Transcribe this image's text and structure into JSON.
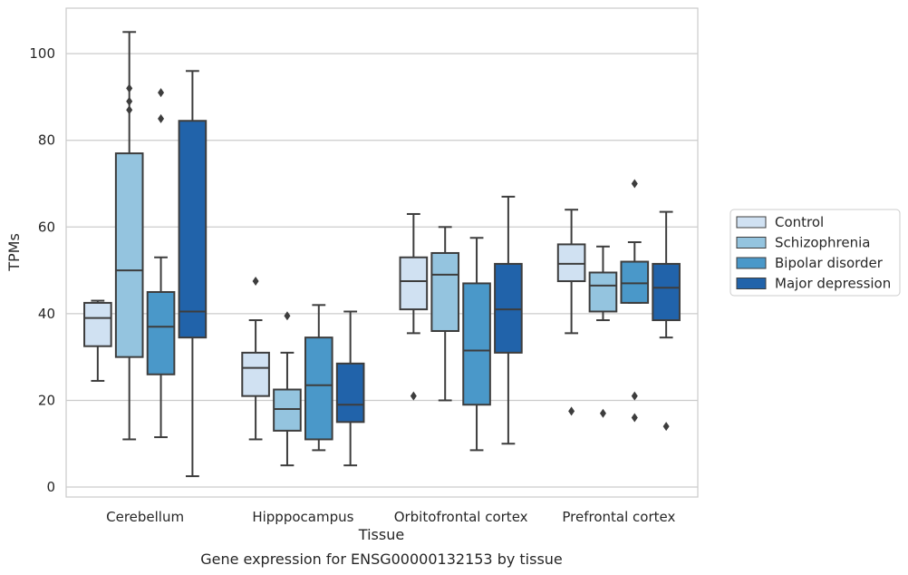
{
  "chart_data": {
    "type": "boxplot",
    "caption": "Gene expression for ENSG00000132153 by tissue",
    "xlabel": "Tissue",
    "ylabel": "TPMs",
    "categories": [
      "Cerebellum",
      "Hipppocampus",
      "Orbitofrontal cortex",
      "Prefrontal cortex"
    ],
    "y_ticks": [
      0,
      20,
      40,
      60,
      80,
      100
    ],
    "ylim": [
      -2.3,
      110.5
    ],
    "grid": true,
    "legend_position": "right",
    "series": [
      {
        "name": "Control",
        "color": "#d0e1f2",
        "boxes": [
          {
            "whislo": 24.5,
            "q1": 32.5,
            "med": 39.0,
            "q3": 42.5,
            "whishi": 43.0,
            "fliers": []
          },
          {
            "whislo": 11.0,
            "q1": 21.0,
            "med": 27.5,
            "q3": 31.0,
            "whishi": 38.5,
            "fliers": [
              47.5
            ]
          },
          {
            "whislo": 35.5,
            "q1": 41.0,
            "med": 47.5,
            "q3": 53.0,
            "whishi": 63.0,
            "fliers": [
              21.0
            ]
          },
          {
            "whislo": 35.5,
            "q1": 47.5,
            "med": 51.5,
            "q3": 56.0,
            "whishi": 64.0,
            "fliers": [
              17.5
            ]
          }
        ]
      },
      {
        "name": "Schizophrenia",
        "color": "#94c4df",
        "boxes": [
          {
            "whislo": 11.0,
            "q1": 30.0,
            "med": 50.0,
            "q3": 77.0,
            "whishi": 105.0,
            "fliers": [
              87.0,
              89.0,
              92.0
            ]
          },
          {
            "whislo": 5.0,
            "q1": 13.0,
            "med": 18.0,
            "q3": 22.5,
            "whishi": 31.0,
            "fliers": [
              39.5
            ]
          },
          {
            "whislo": 20.0,
            "q1": 36.0,
            "med": 49.0,
            "q3": 54.0,
            "whishi": 60.0,
            "fliers": []
          },
          {
            "whislo": 38.5,
            "q1": 40.5,
            "med": 46.5,
            "q3": 49.5,
            "whishi": 55.5,
            "fliers": [
              17.0
            ]
          }
        ]
      },
      {
        "name": "Bipolar disorder",
        "color": "#4a98c9",
        "boxes": [
          {
            "whislo": 11.5,
            "q1": 26.0,
            "med": 37.0,
            "q3": 45.0,
            "whishi": 53.0,
            "fliers": [
              85.0,
              91.0
            ]
          },
          {
            "whislo": 8.5,
            "q1": 11.0,
            "med": 23.5,
            "q3": 34.5,
            "whishi": 42.0,
            "fliers": []
          },
          {
            "whislo": 8.5,
            "q1": 19.0,
            "med": 31.5,
            "q3": 47.0,
            "whishi": 57.5,
            "fliers": []
          },
          {
            "whislo": 42.5,
            "q1": 42.5,
            "med": 47.0,
            "q3": 52.0,
            "whishi": 56.5,
            "fliers": [
              21.0,
              16.0,
              70.0
            ]
          }
        ]
      },
      {
        "name": "Major depression",
        "color": "#2163aa",
        "boxes": [
          {
            "whislo": 2.5,
            "q1": 34.5,
            "med": 40.5,
            "q3": 84.5,
            "whishi": 96.0,
            "fliers": []
          },
          {
            "whislo": 5.0,
            "q1": 15.0,
            "med": 19.0,
            "q3": 28.5,
            "whishi": 40.5,
            "fliers": []
          },
          {
            "whislo": 10.0,
            "q1": 31.0,
            "med": 41.0,
            "q3": 51.5,
            "whishi": 67.0,
            "fliers": []
          },
          {
            "whislo": 34.5,
            "q1": 38.5,
            "med": 46.0,
            "q3": 51.5,
            "whishi": 63.5,
            "fliers": [
              14.0
            ]
          }
        ]
      }
    ]
  }
}
